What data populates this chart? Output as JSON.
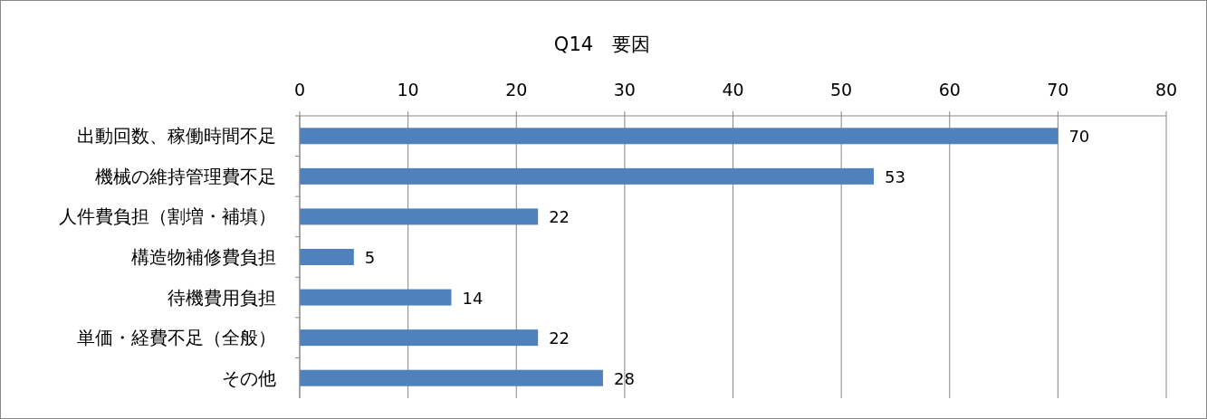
{
  "chart_data": {
    "type": "bar",
    "orientation": "horizontal",
    "title": "Q14　要因",
    "categories": [
      "出動回数、稼働時間不足",
      "機械の維持管理費不足",
      "人件費負担（割増・補填）",
      "構造物補修費負担",
      "待機費用負担",
      "単価・経費不足（全般）",
      "その他"
    ],
    "values": [
      70,
      53,
      22,
      5,
      14,
      22,
      28
    ],
    "color": "#4f81bd",
    "data_labels": true,
    "xlim": [
      0,
      80
    ],
    "xticks": [
      0,
      10,
      20,
      30,
      40,
      50,
      60,
      70,
      80
    ],
    "grid": "x"
  }
}
